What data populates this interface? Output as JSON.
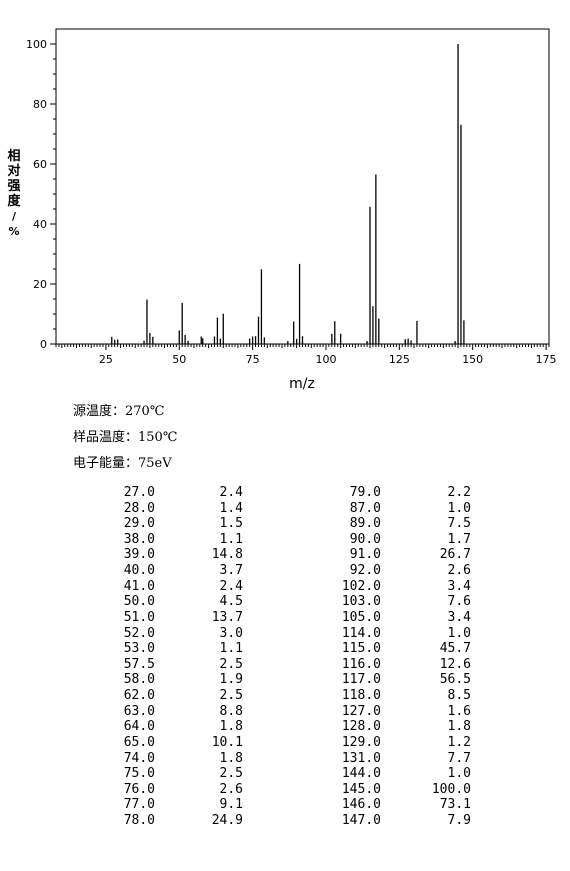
{
  "chart_data": {
    "type": "bar",
    "xlabel": "m/z",
    "ylabel": "相对强度/%",
    "xlim": [
      8,
      176
    ],
    "ylim": [
      0,
      105
    ],
    "xticks": [
      25,
      50,
      75,
      100,
      125,
      150,
      175
    ],
    "yticks": [
      0,
      20,
      40,
      60,
      80,
      100
    ],
    "grid": false,
    "peaks": [
      {
        "mz": 27.0,
        "intensity": 2.4
      },
      {
        "mz": 28.0,
        "intensity": 1.4
      },
      {
        "mz": 29.0,
        "intensity": 1.5
      },
      {
        "mz": 38.0,
        "intensity": 1.1
      },
      {
        "mz": 39.0,
        "intensity": 14.8
      },
      {
        "mz": 40.0,
        "intensity": 3.7
      },
      {
        "mz": 41.0,
        "intensity": 2.4
      },
      {
        "mz": 50.0,
        "intensity": 4.5
      },
      {
        "mz": 51.0,
        "intensity": 13.7
      },
      {
        "mz": 52.0,
        "intensity": 3.0
      },
      {
        "mz": 53.0,
        "intensity": 1.1
      },
      {
        "mz": 57.5,
        "intensity": 2.5
      },
      {
        "mz": 58.0,
        "intensity": 1.9
      },
      {
        "mz": 62.0,
        "intensity": 2.5
      },
      {
        "mz": 63.0,
        "intensity": 8.8
      },
      {
        "mz": 64.0,
        "intensity": 1.8
      },
      {
        "mz": 65.0,
        "intensity": 10.1
      },
      {
        "mz": 74.0,
        "intensity": 1.8
      },
      {
        "mz": 75.0,
        "intensity": 2.5
      },
      {
        "mz": 76.0,
        "intensity": 2.6
      },
      {
        "mz": 77.0,
        "intensity": 9.1
      },
      {
        "mz": 78.0,
        "intensity": 24.9
      },
      {
        "mz": 79.0,
        "intensity": 2.2
      },
      {
        "mz": 87.0,
        "intensity": 1.0
      },
      {
        "mz": 89.0,
        "intensity": 7.5
      },
      {
        "mz": 90.0,
        "intensity": 1.7
      },
      {
        "mz": 91.0,
        "intensity": 26.7
      },
      {
        "mz": 92.0,
        "intensity": 2.6
      },
      {
        "mz": 102.0,
        "intensity": 3.4
      },
      {
        "mz": 103.0,
        "intensity": 7.6
      },
      {
        "mz": 105.0,
        "intensity": 3.4
      },
      {
        "mz": 114.0,
        "intensity": 1.0
      },
      {
        "mz": 115.0,
        "intensity": 45.7
      },
      {
        "mz": 116.0,
        "intensity": 12.6
      },
      {
        "mz": 117.0,
        "intensity": 56.5
      },
      {
        "mz": 118.0,
        "intensity": 8.5
      },
      {
        "mz": 127.0,
        "intensity": 1.6
      },
      {
        "mz": 128.0,
        "intensity": 1.8
      },
      {
        "mz": 129.0,
        "intensity": 1.2
      },
      {
        "mz": 131.0,
        "intensity": 7.7
      },
      {
        "mz": 144.0,
        "intensity": 1.0
      },
      {
        "mz": 145.0,
        "intensity": 100.0
      },
      {
        "mz": 146.0,
        "intensity": 73.1
      },
      {
        "mz": 147.0,
        "intensity": 7.9
      }
    ]
  },
  "conditions": [
    {
      "label": "源温度：",
      "value": "270℃"
    },
    {
      "label": "样品温度：",
      "value": "150℃"
    },
    {
      "label": "电子能量：",
      "value": "75eV"
    }
  ],
  "table_rows": [
    [
      "27.0",
      "2.4",
      "79.0",
      "2.2"
    ],
    [
      "28.0",
      "1.4",
      "87.0",
      "1.0"
    ],
    [
      "29.0",
      "1.5",
      "89.0",
      "7.5"
    ],
    [
      "38.0",
      "1.1",
      "90.0",
      "1.7"
    ],
    [
      "39.0",
      "14.8",
      "91.0",
      "26.7"
    ],
    [
      "40.0",
      "3.7",
      "92.0",
      "2.6"
    ],
    [
      "41.0",
      "2.4",
      "102.0",
      "3.4"
    ],
    [
      "50.0",
      "4.5",
      "103.0",
      "7.6"
    ],
    [
      "51.0",
      "13.7",
      "105.0",
      "3.4"
    ],
    [
      "52.0",
      "3.0",
      "114.0",
      "1.0"
    ],
    [
      "53.0",
      "1.1",
      "115.0",
      "45.7"
    ],
    [
      "57.5",
      "2.5",
      "116.0",
      "12.6"
    ],
    [
      "58.0",
      "1.9",
      "117.0",
      "56.5"
    ],
    [
      "62.0",
      "2.5",
      "118.0",
      "8.5"
    ],
    [
      "63.0",
      "8.8",
      "127.0",
      "1.6"
    ],
    [
      "64.0",
      "1.8",
      "128.0",
      "1.8"
    ],
    [
      "65.0",
      "10.1",
      "129.0",
      "1.2"
    ],
    [
      "74.0",
      "1.8",
      "131.0",
      "7.7"
    ],
    [
      "75.0",
      "2.5",
      "144.0",
      "1.0"
    ],
    [
      "76.0",
      "2.6",
      "145.0",
      "100.0"
    ],
    [
      "77.0",
      "9.1",
      "146.0",
      "73.1"
    ],
    [
      "78.0",
      "24.9",
      "147.0",
      "7.9"
    ]
  ]
}
